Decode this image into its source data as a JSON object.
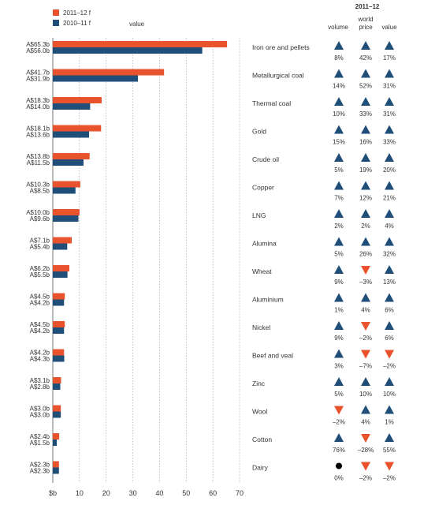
{
  "legend": {
    "items": [
      {
        "label": "2011–12 f",
        "color": "#e8522c"
      },
      {
        "label": "2010–11 f",
        "color": "#1f4e79"
      }
    ],
    "value_label": "value"
  },
  "table_header": {
    "period": "2011–12",
    "columns": [
      "volume",
      "world\nprice",
      "value"
    ]
  },
  "colors": {
    "orange": "#e8522c",
    "navy": "#1f4e79",
    "up": "#1f4e79",
    "down": "#e8522c",
    "neutral": "#000000"
  },
  "chart_data": {
    "type": "bar",
    "orientation": "horizontal",
    "xlabel": "$b",
    "xlim": [
      0,
      70
    ],
    "xticks": [
      10,
      20,
      30,
      40,
      50,
      60,
      70
    ],
    "grid": "vertical-dotted",
    "legend_position": "top-left",
    "categories": [
      "Iron ore and pellets",
      "Metallurgical coal",
      "Thermal coal",
      "Gold",
      "Crude oil",
      "Copper",
      "LNG",
      "Alumina",
      "Wheat",
      "Aluminium",
      "Nickel",
      "Beef and veal",
      "Zinc",
      "Wool",
      "Cotton",
      "Dairy"
    ],
    "series": [
      {
        "name": "2011–12 f",
        "values": [
          65.3,
          41.7,
          18.3,
          18.1,
          13.8,
          10.3,
          10.0,
          7.1,
          6.2,
          4.5,
          4.5,
          4.2,
          3.1,
          3.0,
          2.4,
          2.3
        ],
        "labels": [
          "A$65.3b",
          "A$41.7b",
          "A$18.3b",
          "A$18.1b",
          "A$13.8b",
          "A$10.3b",
          "A$10.0b",
          "A$7.1b",
          "A$6.2b",
          "A$4.5b",
          "A$4.5b",
          "A$4.2b",
          "A$3.1b",
          "A$3.0b",
          "A$2.4b",
          "A$2.3b"
        ]
      },
      {
        "name": "2010–11 f",
        "values": [
          56.0,
          31.9,
          14.0,
          13.6,
          11.5,
          8.5,
          9.6,
          5.4,
          5.5,
          4.2,
          4.2,
          4.3,
          2.8,
          3.0,
          1.5,
          2.3
        ],
        "labels": [
          "A$56.0b",
          "A$31.9b",
          "A$14.0b",
          "A$13.6b",
          "A$11.5b",
          "A$8.5b",
          "A$9.6b",
          "A$5.4b",
          "A$5.5b",
          "A$4.2b",
          "A$4.2b",
          "A$4.3b",
          "A$2.8b",
          "A$3.0b",
          "A$1.5b",
          "A$2.3b"
        ]
      }
    ],
    "changes_2011_12": [
      {
        "volume": [
          "up",
          "8%"
        ],
        "price": [
          "up",
          "42%"
        ],
        "value": [
          "up",
          "17%"
        ]
      },
      {
        "volume": [
          "up",
          "14%"
        ],
        "price": [
          "up",
          "52%"
        ],
        "value": [
          "up",
          "31%"
        ]
      },
      {
        "volume": [
          "up",
          "10%"
        ],
        "price": [
          "up",
          "33%"
        ],
        "value": [
          "up",
          "31%"
        ]
      },
      {
        "volume": [
          "up",
          "15%"
        ],
        "price": [
          "up",
          "16%"
        ],
        "value": [
          "up",
          "33%"
        ]
      },
      {
        "volume": [
          "up",
          "5%"
        ],
        "price": [
          "up",
          "19%"
        ],
        "value": [
          "up",
          "20%"
        ]
      },
      {
        "volume": [
          "up",
          "7%"
        ],
        "price": [
          "up",
          "12%"
        ],
        "value": [
          "up",
          "21%"
        ]
      },
      {
        "volume": [
          "up",
          "2%"
        ],
        "price": [
          "up",
          "2%"
        ],
        "value": [
          "up",
          "4%"
        ]
      },
      {
        "volume": [
          "up",
          "5%"
        ],
        "price": [
          "up",
          "26%"
        ],
        "value": [
          "up",
          "32%"
        ]
      },
      {
        "volume": [
          "up",
          "9%"
        ],
        "price": [
          "down",
          "–3%"
        ],
        "value": [
          "up",
          "13%"
        ]
      },
      {
        "volume": [
          "up",
          "1%"
        ],
        "price": [
          "up",
          "4%"
        ],
        "value": [
          "up",
          "6%"
        ]
      },
      {
        "volume": [
          "up",
          "9%"
        ],
        "price": [
          "down",
          "–2%"
        ],
        "value": [
          "up",
          "6%"
        ]
      },
      {
        "volume": [
          "up",
          "3%"
        ],
        "price": [
          "down",
          "–7%"
        ],
        "value": [
          "down",
          "–2%"
        ]
      },
      {
        "volume": [
          "up",
          "5%"
        ],
        "price": [
          "up",
          "10%"
        ],
        "value": [
          "up",
          "10%"
        ]
      },
      {
        "volume": [
          "down",
          "–2%"
        ],
        "price": [
          "up",
          "4%"
        ],
        "value": [
          "up",
          "1%"
        ]
      },
      {
        "volume": [
          "up",
          "76%"
        ],
        "price": [
          "down",
          "–28%"
        ],
        "value": [
          "up",
          "55%"
        ]
      },
      {
        "volume": [
          "neutral",
          "0%"
        ],
        "price": [
          "down",
          "–2%"
        ],
        "value": [
          "down",
          "–2%"
        ]
      }
    ]
  }
}
